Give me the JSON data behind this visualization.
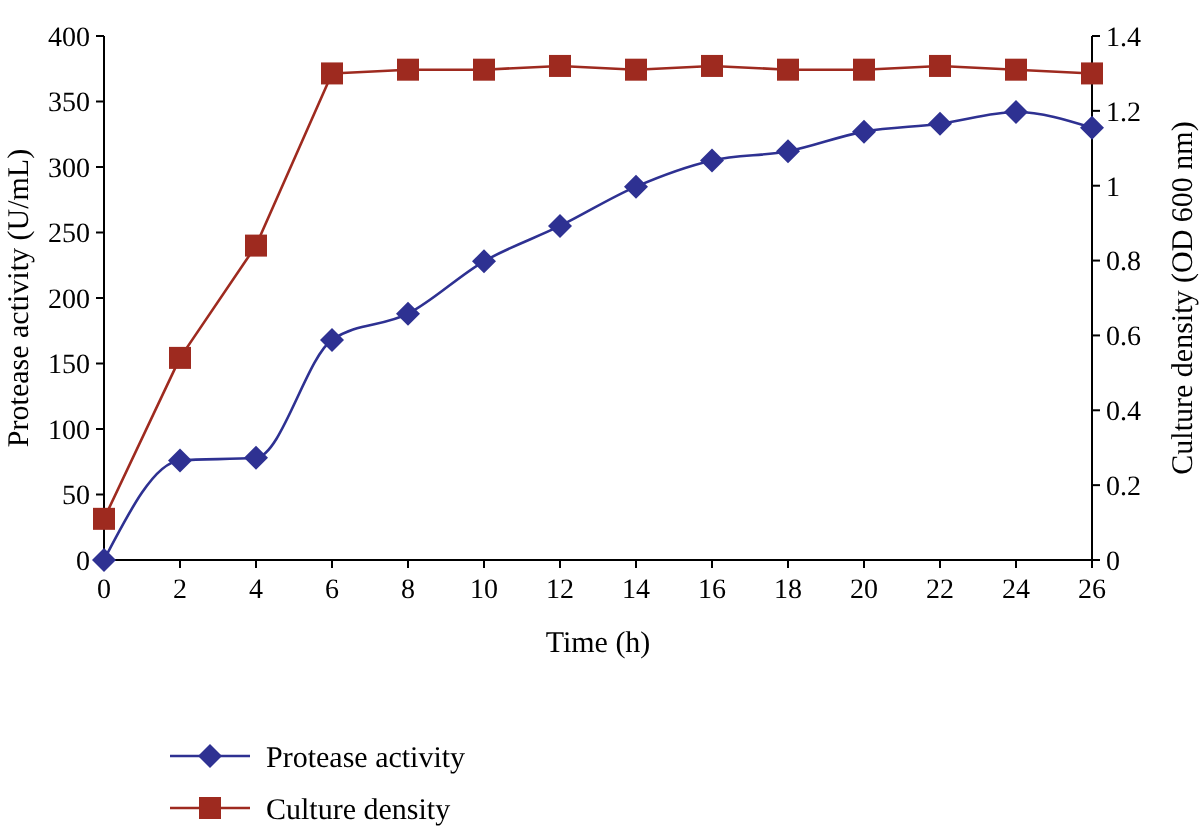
{
  "chart_data": {
    "type": "line",
    "xlabel": "Time (h)",
    "ylabel": "Protease activity (U/mL)",
    "y2label": "Culture density (OD 600 nm)",
    "x": [
      0,
      2,
      4,
      6,
      8,
      10,
      12,
      14,
      16,
      18,
      20,
      22,
      24,
      26
    ],
    "xlim": [
      0,
      26
    ],
    "xticks": [
      0,
      2,
      4,
      6,
      8,
      10,
      12,
      14,
      16,
      18,
      20,
      22,
      24,
      26
    ],
    "ylim": [
      0,
      400
    ],
    "yticks": [
      0,
      50,
      100,
      150,
      200,
      250,
      300,
      350,
      400
    ],
    "y2lim": [
      0,
      1.4
    ],
    "y2ticks": [
      {
        "value": 0,
        "label": "0"
      },
      {
        "value": 0.2,
        "label": "0.2"
      },
      {
        "value": 0.4,
        "label": "0.4"
      },
      {
        "value": 0.6,
        "label": "0.6"
      },
      {
        "value": 0.8,
        "label": "0.8"
      },
      {
        "value": 1,
        "label": "1"
      },
      {
        "value": 1.2,
        "label": "1.2"
      },
      {
        "value": 1.4,
        "label": "1.4"
      }
    ],
    "legend": "bottom",
    "grid": false,
    "series": [
      {
        "name": "Protease activity",
        "color": "#2e3192",
        "marker": "diamond",
        "values": [
          0,
          76,
          78,
          168,
          188,
          228,
          255,
          285,
          305,
          312,
          327,
          333,
          342,
          330
        ]
      },
      {
        "name": "Culture density",
        "color": "#9e2a1f",
        "marker": "square",
        "axis": "y2",
        "values": [
          0.11,
          0.54,
          0.84,
          1.3,
          1.31,
          1.31,
          1.32,
          1.31,
          1.32,
          1.31,
          1.31,
          1.32,
          1.31,
          1.3
        ]
      }
    ]
  }
}
